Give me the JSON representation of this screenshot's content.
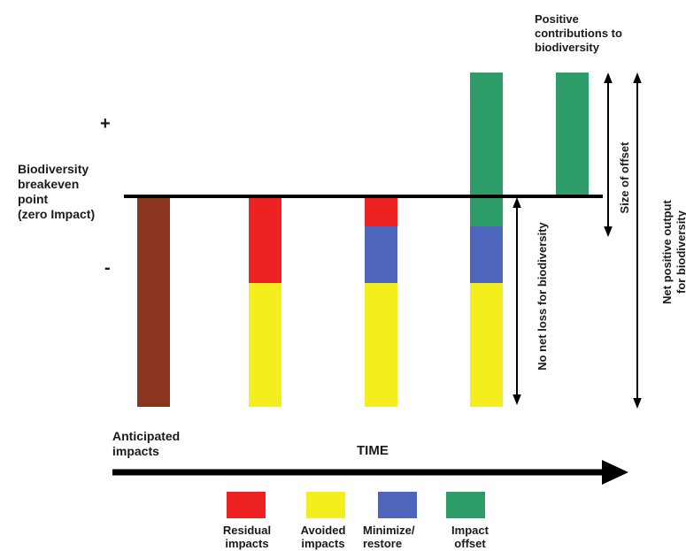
{
  "labels": {
    "breakeven": "Biodiversity\nbreakeven\npoint\n(zero Impact)",
    "plus": "+",
    "minus": "-",
    "positive_contributions": "Positive\ncontributions to\nbiodiversity",
    "anticipated_impacts": "Anticipated\nimpacts",
    "time": "TIME",
    "no_net_loss": "No net loss for biodiversity",
    "size_of_offset": "Size of offset",
    "net_positive": "Net positive output\nfor biodiversity"
  },
  "legend": [
    {
      "label": "Residual\nimpacts",
      "color": "#ee2222"
    },
    {
      "label": "Avoided\nimpacts",
      "color": "#f5ee1e"
    },
    {
      "label": "Minimize/\nrestore",
      "color": "#4d66bc"
    },
    {
      "label": "Impact\noffset",
      "color": "#2e9c68"
    }
  ],
  "colors": {
    "anticipated": "#8b3420",
    "residual": "#ee2222",
    "avoided": "#f5ee1e",
    "minimize": "#4d66bc",
    "offset": "#2e9c68",
    "line": "#000000"
  }
}
